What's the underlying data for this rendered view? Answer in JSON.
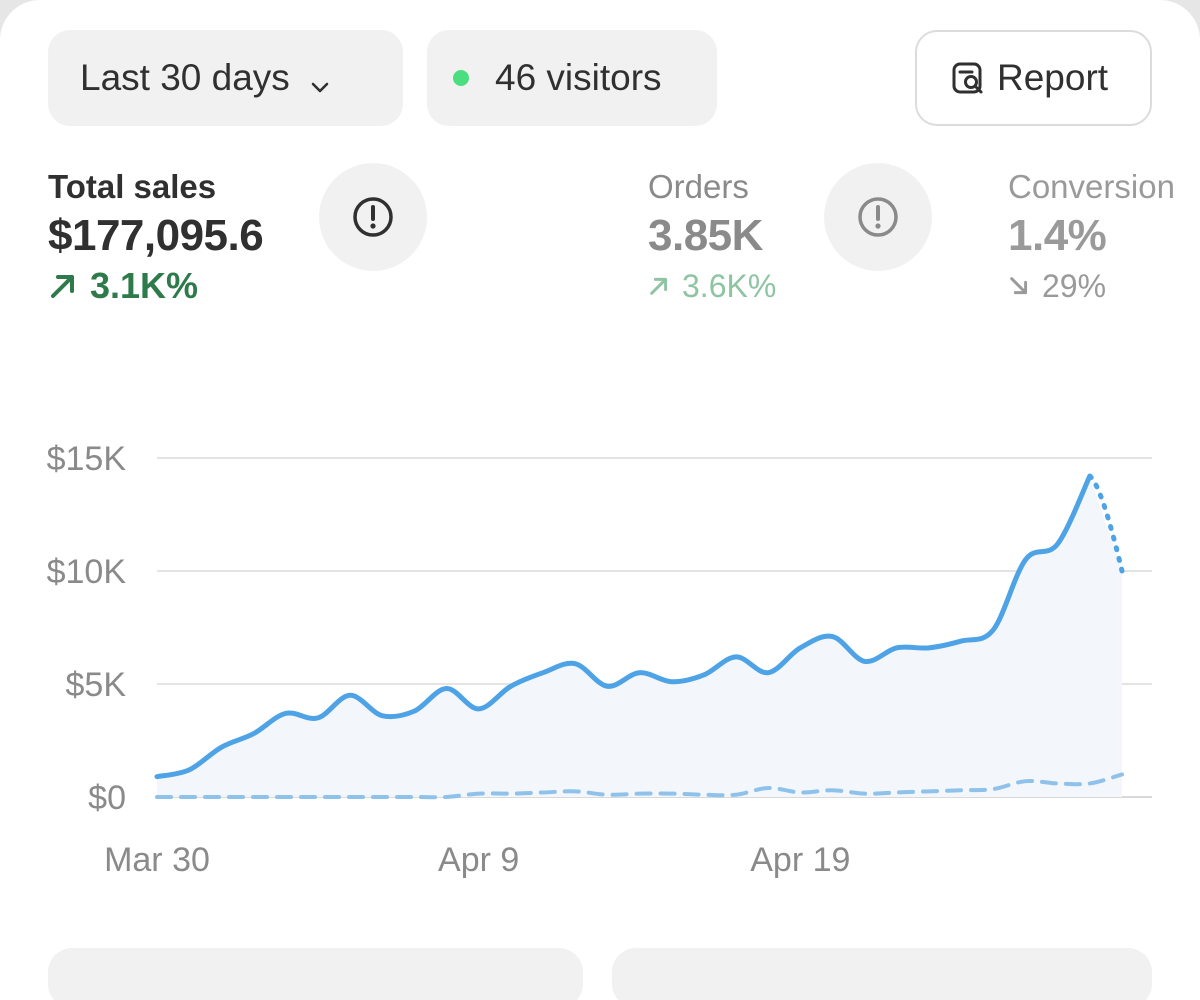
{
  "filters": {
    "date_range_label": "Last 30 days",
    "visitors_label": "46 visitors",
    "live_dot_color": "#4ade80",
    "report_label": "Report"
  },
  "metrics": [
    {
      "label": "Total sales",
      "value": "$177,095.6",
      "change": "3.1K%",
      "direction": "up",
      "color": "#2f7a4b"
    },
    {
      "label": "Orders",
      "value": "3.85K",
      "change": "3.6K%",
      "direction": "up",
      "color": "#8fc4a2"
    },
    {
      "label": "Conversion",
      "value": "1.4%",
      "change": "29%",
      "direction": "down",
      "color": "#9a9a9a"
    }
  ],
  "icons": {
    "chevron": "chevron-down-icon",
    "report": "report-search-icon",
    "info": "exclamation-circle-icon",
    "up": "arrow-up-right-icon",
    "down": "arrow-down-right-icon"
  },
  "chart_data": {
    "type": "line",
    "ylim": [
      0,
      15000
    ],
    "y_ticks": [
      "$15K",
      "$10K",
      "$5K",
      "$0"
    ],
    "y_tick_values": [
      15000,
      10000,
      5000,
      0
    ],
    "x_tick_labels": [
      "Mar 30",
      "Apr 9",
      "Apr 19"
    ],
    "x_tick_index": [
      0,
      10,
      20
    ],
    "grid": true,
    "line_color": "#4ea3e6",
    "series": [
      {
        "style": "solid",
        "x": [
          "Mar 30",
          "Mar 31",
          "Apr 1",
          "Apr 2",
          "Apr 3",
          "Apr 4",
          "Apr 5",
          "Apr 6",
          "Apr 7",
          "Apr 8",
          "Apr 9",
          "Apr 10",
          "Apr 11",
          "Apr 12",
          "Apr 13",
          "Apr 14",
          "Apr 15",
          "Apr 16",
          "Apr 17",
          "Apr 18",
          "Apr 19",
          "Apr 20",
          "Apr 21",
          "Apr 22",
          "Apr 23",
          "Apr 24",
          "Apr 25",
          "Apr 26",
          "Apr 27",
          "Apr 28",
          "Apr 29"
        ],
        "values": [
          900,
          1200,
          2200,
          2800,
          3700,
          3500,
          4500,
          3600,
          3800,
          4800,
          3900,
          4900,
          5500,
          5900,
          4900,
          5500,
          5100,
          5400,
          6200,
          5500,
          6600,
          7100,
          6000,
          6600,
          6600,
          6900,
          7400,
          10500,
          11200,
          14200,
          null
        ]
      },
      {
        "style": "dotted",
        "x": [
          "Apr 28",
          "Apr 29"
        ],
        "values": [
          14200,
          10000
        ]
      },
      {
        "style": "dashed",
        "x": [
          "Mar 30",
          "Mar 31",
          "Apr 1",
          "Apr 2",
          "Apr 3",
          "Apr 4",
          "Apr 5",
          "Apr 6",
          "Apr 7",
          "Apr 8",
          "Apr 9",
          "Apr 10",
          "Apr 11",
          "Apr 12",
          "Apr 13",
          "Apr 14",
          "Apr 15",
          "Apr 16",
          "Apr 17",
          "Apr 18",
          "Apr 19",
          "Apr 20",
          "Apr 21",
          "Apr 22",
          "Apr 23",
          "Apr 24",
          "Apr 25",
          "Apr 26",
          "Apr 27",
          "Apr 28",
          "Apr 29"
        ],
        "values": [
          0,
          0,
          0,
          0,
          0,
          0,
          0,
          0,
          0,
          0,
          150,
          150,
          200,
          250,
          100,
          150,
          150,
          100,
          100,
          400,
          200,
          300,
          150,
          200,
          250,
          300,
          350,
          700,
          600,
          600,
          1000
        ]
      }
    ]
  }
}
